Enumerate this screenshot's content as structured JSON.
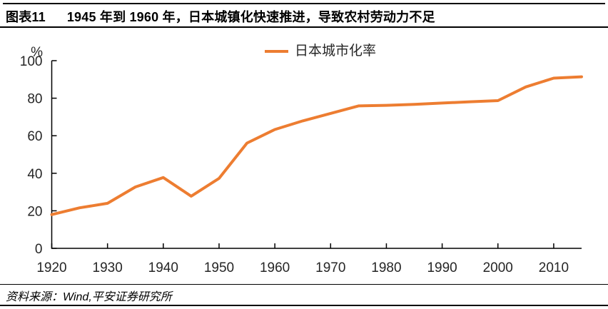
{
  "header": {
    "label": "图表11",
    "title": "1945 年到 1960 年，日本城镇化快速推进，导致农村劳动力不足"
  },
  "footer": {
    "source": "资料来源：Wind,平安证券研究所"
  },
  "colors": {
    "line": "#ED7D31",
    "axis": "#000000",
    "tick_text": "#262626",
    "title_text": "#000000"
  },
  "chart_data": {
    "type": "line",
    "title": "",
    "xlabel": "",
    "ylabel": "",
    "y_unit": "%",
    "x": [
      1920,
      1925,
      1930,
      1935,
      1940,
      1945,
      1950,
      1955,
      1960,
      1965,
      1970,
      1975,
      1980,
      1985,
      1990,
      1995,
      2000,
      2005,
      2010,
      2015
    ],
    "series": [
      {
        "name": "日本城市化率",
        "values": [
          18.0,
          21.6,
          24.0,
          32.7,
          37.7,
          27.8,
          37.3,
          56.1,
          63.3,
          67.9,
          71.9,
          75.9,
          76.2,
          76.7,
          77.4,
          78.1,
          78.7,
          86.0,
          90.7,
          91.4
        ]
      }
    ],
    "x_ticks": [
      1920,
      1930,
      1940,
      1950,
      1960,
      1970,
      1980,
      1990,
      2000,
      2010
    ],
    "y_ticks": [
      0,
      20,
      40,
      60,
      80,
      100
    ],
    "xlim": [
      1920,
      2015
    ],
    "ylim": [
      0,
      100
    ],
    "grid": false,
    "legend_position": "top-center"
  }
}
